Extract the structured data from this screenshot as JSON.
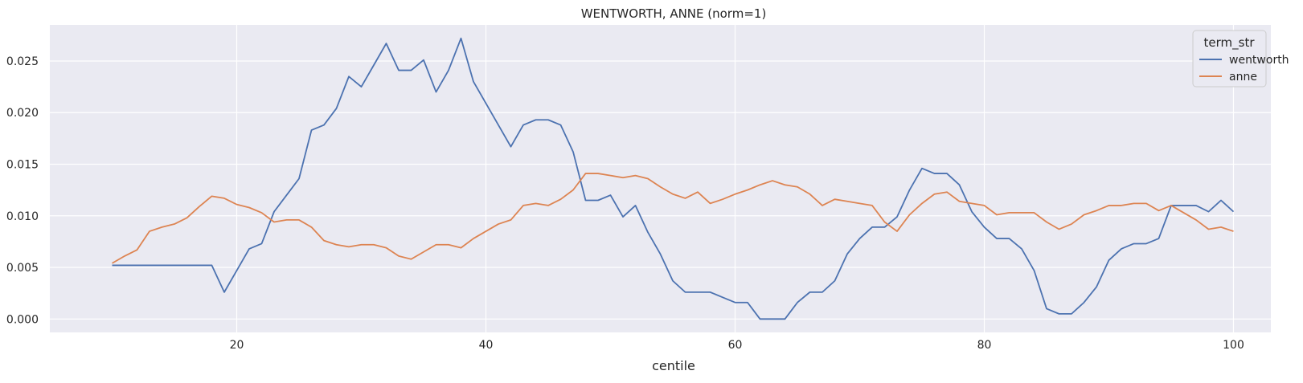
{
  "chart_data": {
    "type": "line",
    "title": "WENTWORTH, ANNE (norm=1)",
    "xlabel": "centile",
    "ylabel": "",
    "xlim": [
      5,
      103
    ],
    "ylim": [
      -0.0013,
      0.0285
    ],
    "x_ticks": [
      20,
      40,
      60,
      80,
      100
    ],
    "y_ticks": [
      0.0,
      0.005,
      0.01,
      0.015,
      0.02,
      0.025
    ],
    "x_tick_labels": [
      "20",
      "40",
      "60",
      "80",
      "100"
    ],
    "y_tick_labels": [
      "0.000",
      "0.005",
      "0.010",
      "0.015",
      "0.020",
      "0.025"
    ],
    "grid": true,
    "background": "#eaeaf2",
    "legend": {
      "title": "term_str",
      "placement": "top-right"
    },
    "x": [
      10,
      11,
      12,
      13,
      14,
      15,
      16,
      17,
      18,
      19,
      20,
      21,
      22,
      23,
      24,
      25,
      26,
      27,
      28,
      29,
      30,
      31,
      32,
      33,
      34,
      35,
      36,
      37,
      38,
      39,
      40,
      41,
      42,
      43,
      44,
      45,
      46,
      47,
      48,
      49,
      50,
      51,
      52,
      53,
      54,
      55,
      56,
      57,
      58,
      59,
      60,
      61,
      62,
      63,
      64,
      65,
      66,
      67,
      68,
      69,
      70,
      71,
      72,
      73,
      74,
      75,
      76,
      77,
      78,
      79,
      80,
      81,
      82,
      83,
      84,
      85,
      86,
      87,
      88,
      89,
      90,
      91,
      92,
      93,
      94,
      95,
      96,
      97,
      98,
      99,
      100
    ],
    "series": [
      {
        "name": "wentworth",
        "color": "#4c72b0",
        "values": [
          0.0052,
          0.0052,
          0.0052,
          0.0052,
          0.0052,
          0.0052,
          0.0052,
          0.0052,
          0.0052,
          0.0026,
          0.0047,
          0.0068,
          0.0073,
          0.0104,
          0.012,
          0.0136,
          0.0183,
          0.0188,
          0.0204,
          0.0235,
          0.0225,
          0.0246,
          0.0267,
          0.0241,
          0.0241,
          0.0251,
          0.022,
          0.0241,
          0.0272,
          0.023,
          0.0209,
          0.0188,
          0.0167,
          0.0188,
          0.0193,
          0.0193,
          0.0188,
          0.0162,
          0.0115,
          0.0115,
          0.012,
          0.0099,
          0.011,
          0.0084,
          0.0063,
          0.0037,
          0.0026,
          0.0026,
          0.0026,
          0.0021,
          0.0016,
          0.0016,
          0.0,
          0.0,
          0.0,
          0.0016,
          0.0026,
          0.0026,
          0.0037,
          0.0063,
          0.0078,
          0.0089,
          0.0089,
          0.0099,
          0.0125,
          0.0146,
          0.0141,
          0.0141,
          0.013,
          0.0104,
          0.0089,
          0.0078,
          0.0078,
          0.0068,
          0.0047,
          0.001,
          0.0005,
          0.0005,
          0.0016,
          0.0031,
          0.0057,
          0.0068,
          0.0073,
          0.0073,
          0.0078,
          0.011,
          0.011,
          0.011,
          0.0104,
          0.0115,
          0.0104
        ]
      },
      {
        "name": "anne",
        "color": "#dd8452",
        "values": [
          0.0054,
          0.0061,
          0.0067,
          0.0085,
          0.0089,
          0.0092,
          0.0098,
          0.0109,
          0.0119,
          0.0117,
          0.0111,
          0.0108,
          0.0103,
          0.0094,
          0.0096,
          0.0096,
          0.0089,
          0.0076,
          0.0072,
          0.007,
          0.0072,
          0.0072,
          0.0069,
          0.0061,
          0.0058,
          0.0065,
          0.0072,
          0.0072,
          0.0069,
          0.0078,
          0.0085,
          0.0092,
          0.0096,
          0.011,
          0.0112,
          0.011,
          0.0116,
          0.0125,
          0.0141,
          0.0141,
          0.0139,
          0.0137,
          0.0139,
          0.0136,
          0.0128,
          0.0121,
          0.0117,
          0.0123,
          0.0112,
          0.0116,
          0.0121,
          0.0125,
          0.013,
          0.0134,
          0.013,
          0.0128,
          0.0121,
          0.011,
          0.0116,
          0.0114,
          0.0112,
          0.011,
          0.0094,
          0.0085,
          0.0101,
          0.0112,
          0.0121,
          0.0123,
          0.0114,
          0.0112,
          0.011,
          0.0101,
          0.0103,
          0.0103,
          0.0103,
          0.0094,
          0.0087,
          0.0092,
          0.0101,
          0.0105,
          0.011,
          0.011,
          0.0112,
          0.0112,
          0.0105,
          0.011,
          0.0103,
          0.0096,
          0.0087,
          0.0089,
          0.0085
        ]
      }
    ]
  }
}
